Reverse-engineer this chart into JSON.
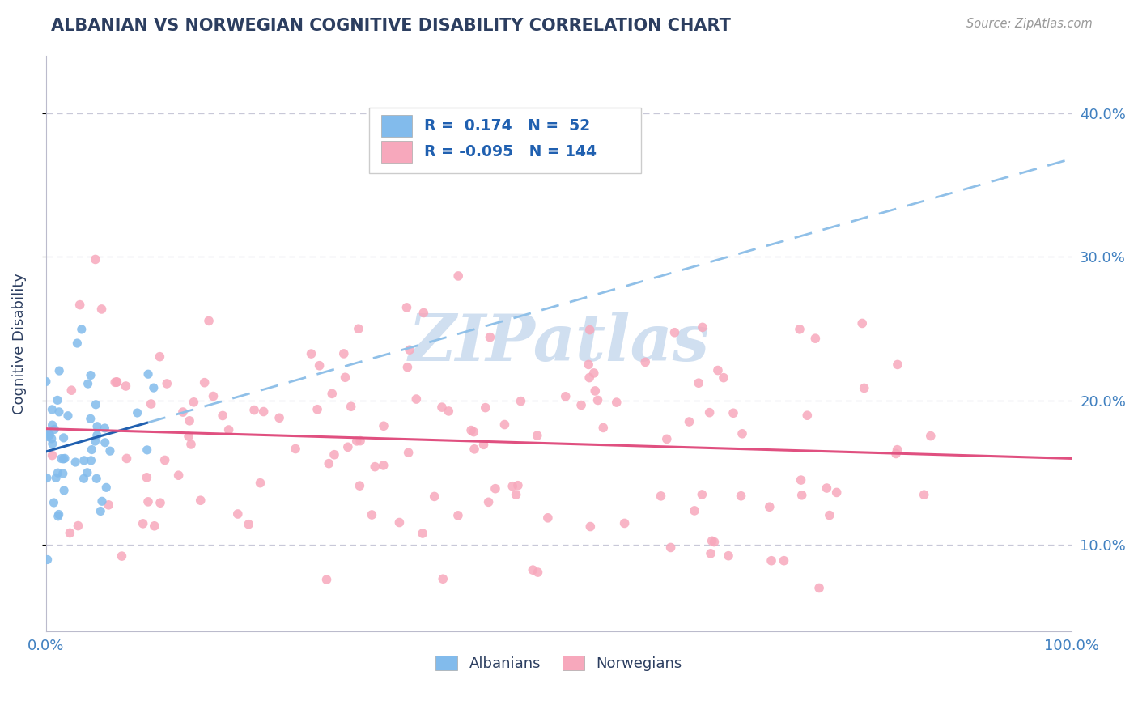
{
  "title": "ALBANIAN VS NORWEGIAN COGNITIVE DISABILITY CORRELATION CHART",
  "source": "Source: ZipAtlas.com",
  "ylabel": "Cognitive Disability",
  "xlim": [
    0.0,
    1.0
  ],
  "ylim": [
    0.04,
    0.44
  ],
  "yticks": [
    0.1,
    0.2,
    0.3,
    0.4
  ],
  "ytick_labels": [
    "10.0%",
    "20.0%",
    "30.0%",
    "40.0%"
  ],
  "albanian_R": 0.174,
  "albanian_N": 52,
  "norwegian_R": -0.095,
  "norwegian_N": 144,
  "albanian_color": "#82BBEC",
  "norwegian_color": "#F7A8BC",
  "albanian_trend_color": "#2060B0",
  "norwegian_trend_color": "#E05080",
  "albanian_ext_color": "#90C0E8",
  "grid_color": "#C8C8D8",
  "background_color": "#FFFFFF",
  "title_color": "#2C3E60",
  "axis_label_color": "#4080C0",
  "watermark_text": "ZIPatlas",
  "watermark_color": "#D0DFF0",
  "legend_color": "#2060B0",
  "seed": 12345
}
